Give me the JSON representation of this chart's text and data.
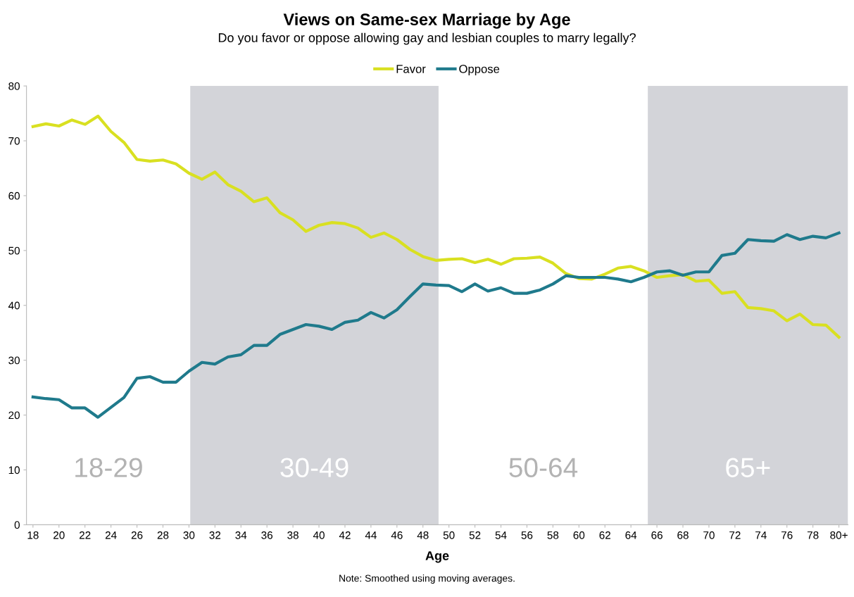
{
  "chart_data": {
    "type": "line",
    "title": "Views on Same-sex Marriage by Age",
    "subtitle": "Do you favor or oppose allowing gay and lesbian couples to marry legally?",
    "xlabel": "Age",
    "x": [
      18,
      19,
      20,
      21,
      22,
      23,
      24,
      25,
      26,
      27,
      28,
      29,
      30,
      31,
      32,
      33,
      34,
      35,
      36,
      37,
      38,
      39,
      40,
      41,
      42,
      43,
      44,
      45,
      46,
      47,
      48,
      49,
      50,
      51,
      52,
      53,
      54,
      55,
      56,
      57,
      58,
      59,
      60,
      61,
      62,
      63,
      64,
      65,
      66,
      67,
      68,
      69,
      70,
      71,
      72,
      73,
      74,
      75,
      76,
      77,
      78,
      79,
      80
    ],
    "series": [
      {
        "name": "Favor",
        "color": "#d9e021",
        "values": [
          72.6,
          73.1,
          72.7,
          73.8,
          73.0,
          74.5,
          71.7,
          69.7,
          66.6,
          66.3,
          66.5,
          65.8,
          64.1,
          63.0,
          64.3,
          62.0,
          60.8,
          58.9,
          59.6,
          56.9,
          55.6,
          53.5,
          54.6,
          55.1,
          54.9,
          54.1,
          52.4,
          53.2,
          52.0,
          50.2,
          48.9,
          48.2,
          48.4,
          48.5,
          47.8,
          48.4,
          47.5,
          48.5,
          48.6,
          48.8,
          47.7,
          45.8,
          44.9,
          44.8,
          45.7,
          46.8,
          47.1,
          46.3,
          45.1,
          45.4,
          45.6,
          44.4,
          44.6,
          42.2,
          42.5,
          39.6,
          39.4,
          39.0,
          37.2,
          38.4,
          36.5,
          36.4,
          34.2
        ]
      },
      {
        "name": "Oppose",
        "color": "#1f7a8c",
        "values": [
          23.3,
          23.0,
          22.8,
          21.3,
          21.3,
          19.6,
          21.4,
          23.2,
          26.7,
          27.0,
          26.0,
          26.0,
          28.0,
          29.6,
          29.3,
          30.6,
          31.0,
          32.7,
          32.7,
          34.7,
          35.6,
          36.5,
          36.2,
          35.6,
          36.9,
          37.3,
          38.7,
          37.7,
          39.2,
          41.6,
          43.9,
          43.7,
          43.6,
          42.5,
          43.9,
          42.6,
          43.2,
          42.2,
          42.2,
          42.8,
          43.9,
          45.4,
          45.1,
          45.1,
          45.1,
          44.8,
          44.3,
          45.1,
          46.1,
          46.3,
          45.5,
          46.1,
          46.1,
          49.1,
          49.5,
          52.0,
          51.8,
          51.7,
          52.9,
          52.0,
          52.6,
          52.3,
          53.2
        ]
      }
    ],
    "xlim": [
      17.5,
      80.7
    ],
    "xticks": [
      18,
      20,
      22,
      24,
      26,
      28,
      30,
      32,
      34,
      36,
      38,
      40,
      42,
      44,
      46,
      48,
      50,
      52,
      54,
      56,
      58,
      60,
      62,
      64,
      66,
      68,
      70,
      72,
      74,
      76,
      78,
      {
        "value": 80,
        "label": "80+"
      }
    ],
    "ylim": [
      0,
      80
    ],
    "yticks": [
      0,
      10,
      20,
      30,
      40,
      50,
      60,
      70,
      80
    ],
    "bands": [
      {
        "axis": "x",
        "from": 30.1,
        "to": 49.2,
        "label": "30-49",
        "color": "#d3d4d9"
      },
      {
        "axis": "x",
        "from": 65.3,
        "to": 80.7,
        "label": "65+",
        "color": "#d3d4d9"
      }
    ],
    "legend": "top",
    "grid": false,
    "marker": "none",
    "line_style": "solid",
    "annotations": [
      "18-29",
      "50-64",
      "Note: Smoothed using moving averages."
    ]
  }
}
